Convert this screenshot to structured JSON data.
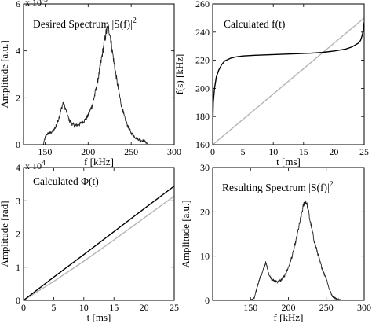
{
  "chart_data": [
    {
      "id": "p1",
      "type": "line",
      "title": "Desired Spectrum |S(f)|",
      "title_sup": "2",
      "xlabel": "f [kHz]",
      "ylabel": "Amplitude [a.u.]",
      "xlim": [
        125,
        300
      ],
      "ylim": [
        0,
        0.006
      ],
      "xticks": [
        150,
        200,
        250,
        300
      ],
      "yticks": [
        0,
        0.002,
        0.004,
        0.006
      ],
      "ytick_labels": [
        "0",
        "2",
        "4",
        "6"
      ],
      "exponent": "x 10",
      "exponent_sup": "-3",
      "series": [
        {
          "color": "#222222",
          "noise": 0.00013,
          "x": [
            125,
            148,
            150,
            152,
            156,
            160,
            164,
            168,
            171,
            174,
            178,
            182,
            186,
            190,
            195,
            200,
            205,
            210,
            214,
            218,
            221,
            223,
            225,
            227,
            230,
            234,
            238,
            242,
            246,
            250,
            255,
            260,
            265,
            267,
            269,
            270,
            300
          ],
          "y": [
            0,
            0,
            0.0003,
            0.00045,
            0.0005,
            0.0006,
            0.0009,
            0.0014,
            0.0018,
            0.0015,
            0.00105,
            0.00085,
            0.00082,
            0.00088,
            0.001,
            0.00125,
            0.0017,
            0.0025,
            0.0033,
            0.0042,
            0.0048,
            0.005,
            0.0048,
            0.0043,
            0.0035,
            0.0026,
            0.0018,
            0.0012,
            0.0008,
            0.0005,
            0.0003,
            0.0002,
            0.00016,
            0.0001,
            5e-05,
            0,
            0
          ]
        }
      ]
    },
    {
      "id": "p2",
      "type": "line",
      "title": "Calculated f(t)",
      "xlabel": "t [ms]",
      "ylabel": "f(s) [kHz]",
      "xlim": [
        0,
        25
      ],
      "ylim": [
        160,
        260
      ],
      "xticks": [
        0,
        5,
        10,
        15,
        20,
        25
      ],
      "yticks": [
        160,
        180,
        200,
        220,
        240,
        260
      ],
      "series": [
        {
          "color": "#b4b4b4",
          "x": [
            0,
            25
          ],
          "y": [
            160,
            250
          ]
        },
        {
          "color": "#000000",
          "x": [
            0,
            0.1,
            0.3,
            0.6,
            1,
            1.5,
            2,
            3,
            4,
            5,
            7,
            10,
            13,
            16,
            18,
            20,
            22,
            23,
            24,
            24.4,
            24.7,
            24.9,
            25
          ],
          "y": [
            172,
            190,
            200,
            208,
            213,
            217,
            219.5,
            221.5,
            222.5,
            223,
            223.5,
            224,
            224.5,
            225,
            225.5,
            226.5,
            228,
            229.5,
            232,
            234,
            238,
            243,
            247
          ]
        }
      ]
    },
    {
      "id": "p3",
      "type": "line",
      "title": "Calculated Φ(t)",
      "xlabel": "t [ms]",
      "ylabel": "Amplitude [rad]",
      "xlim": [
        0,
        25
      ],
      "ylim": [
        0,
        40000
      ],
      "xticks": [
        0,
        5,
        10,
        15,
        20,
        25
      ],
      "yticks": [
        0,
        10000,
        20000,
        30000,
        40000
      ],
      "ytick_labels": [
        "0",
        "1",
        "2",
        "3",
        "4"
      ],
      "exponent": "x 10",
      "exponent_sup": "4",
      "series": [
        {
          "color": "#b4b4b4",
          "x": [
            0,
            2,
            5,
            10,
            15,
            20,
            25
          ],
          "y": [
            0,
            2300,
            5700,
            11800,
            18200,
            24800,
            31400
          ]
        },
        {
          "color": "#000000",
          "x": [
            0,
            1,
            2,
            5,
            10,
            15,
            20,
            25
          ],
          "y": [
            0,
            1400,
            2800,
            7000,
            13800,
            20700,
            27600,
            34400
          ]
        }
      ]
    },
    {
      "id": "p4",
      "type": "line",
      "title": "Resulting Spectrum |S(f)|",
      "title_sup": "2",
      "xlabel": "f [kHz]",
      "ylabel": "Amplitude [a.u.]",
      "xlim": [
        100,
        300
      ],
      "ylim": [
        0,
        30
      ],
      "xticks": [
        150,
        200,
        250,
        300
      ],
      "yticks": [
        0,
        10,
        20,
        30
      ],
      "series": [
        {
          "color": "#222222",
          "noise": 0.45,
          "x": [
            100,
            150,
            155,
            158,
            162,
            165,
            168,
            170,
            172,
            175,
            180,
            185,
            190,
            195,
            200,
            205,
            210,
            215,
            218,
            220,
            222,
            224,
            226,
            228,
            231,
            234,
            238,
            242,
            246,
            250,
            254,
            258,
            262,
            266,
            270,
            300
          ],
          "y": [
            0,
            0,
            0.5,
            2.5,
            5,
            6,
            7.5,
            8.5,
            7.5,
            5.5,
            4.5,
            4.2,
            4.5,
            5.5,
            7.5,
            10,
            13.5,
            17.5,
            20,
            21.5,
            22.5,
            22,
            20.5,
            18.5,
            16,
            13.5,
            11,
            8.5,
            6.5,
            5,
            2.5,
            1,
            0.5,
            0.2,
            0,
            0
          ]
        }
      ]
    }
  ]
}
